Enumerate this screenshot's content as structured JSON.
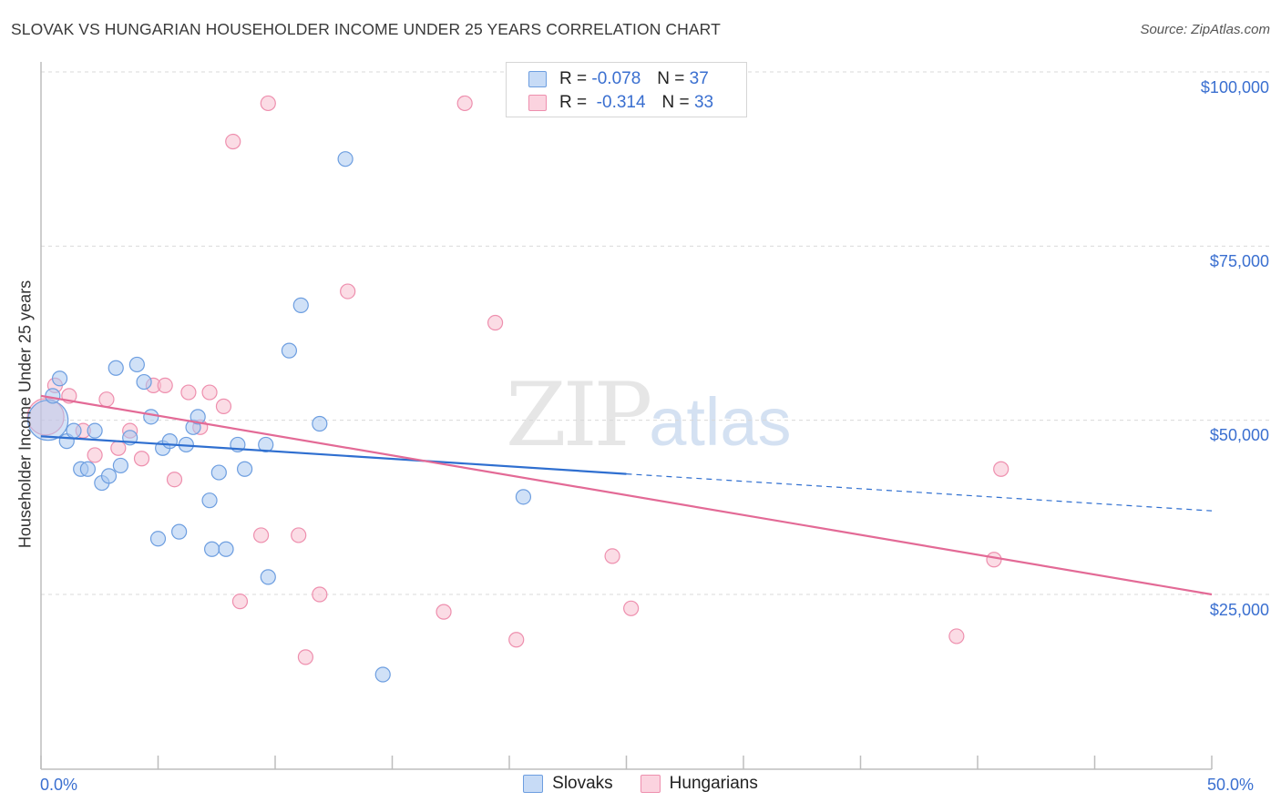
{
  "header": {
    "title": "SLOVAK VS HUNGARIAN HOUSEHOLDER INCOME UNDER 25 YEARS CORRELATION CHART",
    "source": "Source: ZipAtlas.com"
  },
  "watermark": {
    "zip": "ZIP",
    "atlas": "atlas"
  },
  "legend_top": {
    "slovaks": {
      "r_label": "R =",
      "r_value": "-0.078",
      "n_label": "N =",
      "n_value": "37"
    },
    "hungarians": {
      "r_label": "R =",
      "r_value": "-0.314",
      "n_label": "N =",
      "n_value": "33"
    }
  },
  "legend_bottom": {
    "slovaks": "Slovaks",
    "hungarians": "Hungarians"
  },
  "axes": {
    "ylabel": "Householder Income Under 25 years",
    "x_min_label": "0.0%",
    "x_max_label": "50.0%",
    "y_ticks": [
      "$100,000",
      "$75,000",
      "$50,000",
      "$25,000"
    ]
  },
  "colors": {
    "slovak_fill": "#a9c8f0",
    "slovak_stroke": "#6d9ee0",
    "slovak_line": "#2f6fd0",
    "hungarian_fill": "#f7bfd0",
    "hungarian_stroke": "#ee8fae",
    "hungarian_line": "#e36a96",
    "grid": "#d9d9d9",
    "axis_text": "#3a6fd0"
  },
  "chart_data": {
    "type": "scatter",
    "xlabel": "",
    "ylabel": "Householder Income Under 25 years",
    "xlim": [
      0,
      50
    ],
    "ylim": [
      0,
      103000
    ],
    "x_unit": "%",
    "grid": true,
    "legend_placement": "top-center",
    "series": [
      {
        "name": "Slovaks",
        "r": -0.078,
        "n": 37,
        "trend": {
          "x0": 0,
          "y0": 47700,
          "x1": 25,
          "y1": 42300,
          "dashed_to_x": 50,
          "dashed_to_y": 37000
        },
        "points": [
          [
            0.3,
            50000
          ],
          [
            0.5,
            53500
          ],
          [
            0.8,
            56000
          ],
          [
            1.1,
            47000
          ],
          [
            1.4,
            48500
          ],
          [
            1.7,
            43000
          ],
          [
            2.0,
            43000
          ],
          [
            2.3,
            48500
          ],
          [
            2.6,
            41000
          ],
          [
            2.9,
            42000
          ],
          [
            3.2,
            57500
          ],
          [
            3.4,
            43500
          ],
          [
            3.8,
            47500
          ],
          [
            4.1,
            58000
          ],
          [
            4.4,
            55500
          ],
          [
            4.7,
            50500
          ],
          [
            5.0,
            33000
          ],
          [
            5.2,
            46000
          ],
          [
            5.5,
            47000
          ],
          [
            5.9,
            34000
          ],
          [
            6.2,
            46500
          ],
          [
            6.5,
            49000
          ],
          [
            6.7,
            50500
          ],
          [
            7.2,
            38500
          ],
          [
            7.3,
            31500
          ],
          [
            7.6,
            42500
          ],
          [
            7.9,
            31500
          ],
          [
            8.4,
            46500
          ],
          [
            8.7,
            43000
          ],
          [
            9.6,
            46500
          ],
          [
            9.7,
            27500
          ],
          [
            10.6,
            60000
          ],
          [
            11.1,
            66500
          ],
          [
            11.9,
            49500
          ],
          [
            13.0,
            87500
          ],
          [
            14.6,
            13500
          ],
          [
            20.6,
            39000
          ]
        ]
      },
      {
        "name": "Hungarians",
        "r": -0.314,
        "n": 33,
        "trend": {
          "x0": 0,
          "y0": 53500,
          "x1": 50,
          "y1": 25000
        },
        "points": [
          [
            0.2,
            50500
          ],
          [
            0.6,
            55000
          ],
          [
            1.2,
            53500
          ],
          [
            1.8,
            48500
          ],
          [
            2.3,
            45000
          ],
          [
            2.8,
            53000
          ],
          [
            3.3,
            46000
          ],
          [
            3.8,
            48500
          ],
          [
            4.3,
            44500
          ],
          [
            4.8,
            55000
          ],
          [
            5.3,
            55000
          ],
          [
            5.7,
            41500
          ],
          [
            6.3,
            54000
          ],
          [
            6.8,
            49000
          ],
          [
            7.2,
            54000
          ],
          [
            7.8,
            52000
          ],
          [
            8.2,
            90000
          ],
          [
            8.5,
            24000
          ],
          [
            9.4,
            33500
          ],
          [
            9.7,
            95500
          ],
          [
            11.0,
            33500
          ],
          [
            11.3,
            16000
          ],
          [
            11.9,
            25000
          ],
          [
            13.1,
            68500
          ],
          [
            17.2,
            22500
          ],
          [
            18.1,
            95500
          ],
          [
            19.4,
            64000
          ],
          [
            20.3,
            18500
          ],
          [
            24.4,
            30500
          ],
          [
            25.2,
            23000
          ],
          [
            39.1,
            19000
          ],
          [
            40.7,
            30000
          ],
          [
            41.0,
            43000
          ]
        ]
      }
    ]
  }
}
